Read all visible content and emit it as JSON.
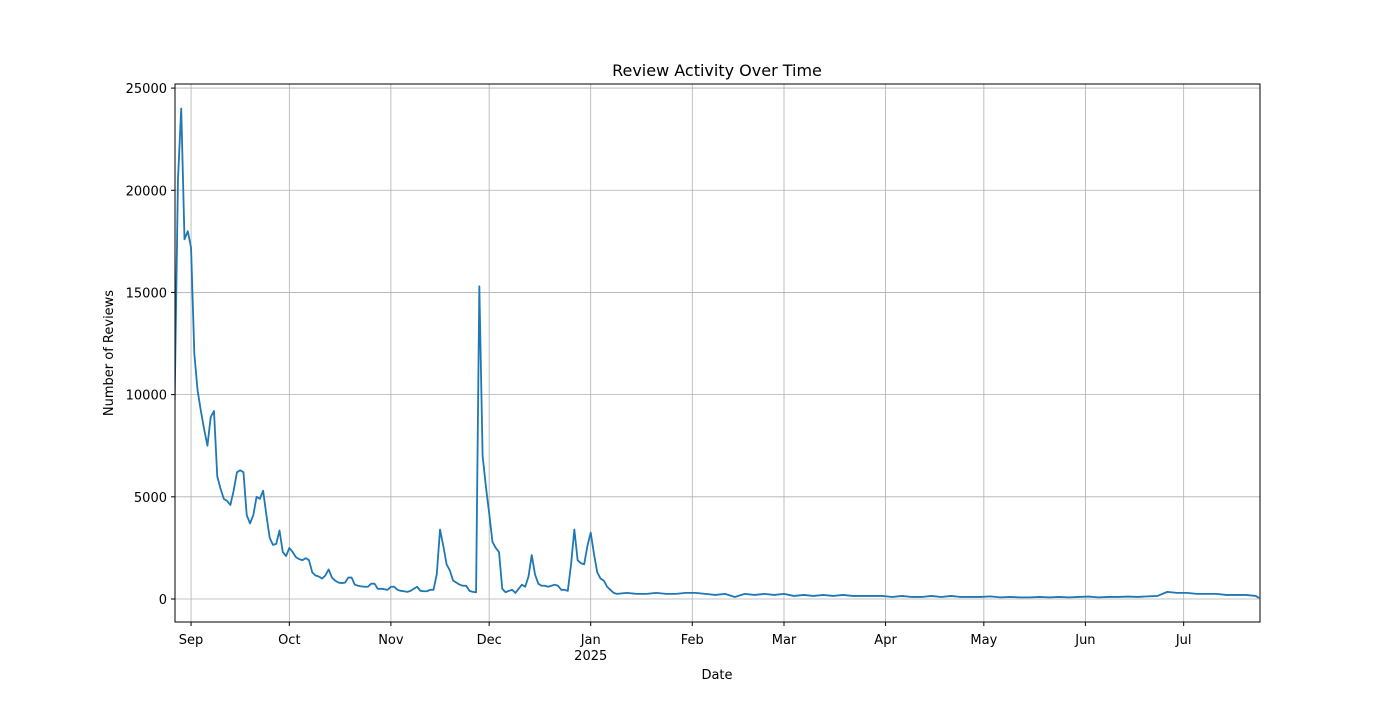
{
  "chart_data": {
    "type": "line",
    "title": "Review Activity Over Time",
    "xlabel": "Date",
    "ylabel": "Number of Reviews",
    "year_label": "2025",
    "color": "#1f77b4",
    "grid": true,
    "xlim": [
      -4.9,
      326.3
    ],
    "ylim": [
      -1125,
      25200
    ],
    "xticks": [
      {
        "value": 0,
        "label": "Sep"
      },
      {
        "value": 30,
        "label": "Oct"
      },
      {
        "value": 61,
        "label": "Nov"
      },
      {
        "value": 91,
        "label": "Dec"
      },
      {
        "value": 122,
        "label": "Jan"
      },
      {
        "value": 153,
        "label": "Feb"
      },
      {
        "value": 181,
        "label": "Mar"
      },
      {
        "value": 212,
        "label": "Apr"
      },
      {
        "value": 242,
        "label": "May"
      },
      {
        "value": 273,
        "label": "Jun"
      },
      {
        "value": 303,
        "label": "Jul"
      }
    ],
    "yticks": [
      0,
      5000,
      10000,
      15000,
      20000,
      25000
    ],
    "x": [
      -5,
      -4,
      -3,
      -2,
      -1,
      0,
      1,
      2,
      3,
      4,
      5,
      6,
      7,
      8,
      9,
      10,
      11,
      12,
      13,
      14,
      15,
      16,
      17,
      18,
      19,
      20,
      21,
      22,
      23,
      24,
      25,
      26,
      27,
      28,
      29,
      30,
      31,
      32,
      33,
      34,
      35,
      36,
      37,
      38,
      39,
      40,
      41,
      42,
      43,
      44,
      45,
      46,
      47,
      48,
      49,
      50,
      51,
      52,
      53,
      54,
      55,
      56,
      57,
      58,
      59,
      60,
      61,
      62,
      63,
      64,
      65,
      66,
      67,
      68,
      69,
      70,
      71,
      72,
      73,
      74,
      75,
      76,
      77,
      78,
      79,
      80,
      81,
      82,
      83,
      84,
      85,
      86,
      87,
      88,
      89,
      90,
      91,
      92,
      93,
      94,
      95,
      96,
      97,
      98,
      99,
      100,
      101,
      102,
      103,
      104,
      105,
      106,
      107,
      108,
      109,
      110,
      111,
      112,
      113,
      114,
      115,
      116,
      117,
      118,
      119,
      120,
      121,
      122,
      123,
      124,
      125,
      126,
      127,
      128,
      129,
      130,
      133,
      136,
      139,
      142,
      145,
      148,
      151,
      154,
      157,
      160,
      163,
      166,
      169,
      172,
      175,
      178,
      181,
      184,
      187,
      190,
      193,
      196,
      199,
      202,
      205,
      208,
      211,
      214,
      217,
      220,
      223,
      226,
      229,
      232,
      235,
      238,
      241,
      244,
      247,
      250,
      253,
      256,
      259,
      262,
      265,
      268,
      271,
      274,
      277,
      280,
      283,
      286,
      289,
      292,
      295,
      298,
      301,
      304,
      307,
      310,
      313,
      316,
      319,
      322,
      325,
      326
    ],
    "values": [
      9700,
      20500,
      24000,
      17600,
      18000,
      17200,
      12000,
      10200,
      9200,
      8300,
      7500,
      8900,
      9200,
      6000,
      5400,
      4900,
      4800,
      4600,
      5300,
      6200,
      6300,
      6200,
      4100,
      3700,
      4100,
      5000,
      4900,
      5300,
      4100,
      3000,
      2650,
      2700,
      3350,
      2300,
      2100,
      2500,
      2300,
      2050,
      1950,
      1900,
      2000,
      1900,
      1300,
      1150,
      1100,
      1000,
      1150,
      1450,
      1050,
      900,
      800,
      780,
      800,
      1050,
      1050,
      700,
      650,
      620,
      600,
      600,
      750,
      750,
      500,
      500,
      480,
      450,
      600,
      600,
      450,
      400,
      380,
      350,
      400,
      500,
      600,
      400,
      380,
      380,
      450,
      450,
      1200,
      3400,
      2600,
      1700,
      1400,
      900,
      800,
      700,
      650,
      650,
      400,
      350,
      330,
      15300,
      7000,
      5500,
      4200,
      2800,
      2500,
      2300,
      500,
      330,
      400,
      450,
      300,
      500,
      700,
      600,
      1100,
      2150,
      1200,
      750,
      650,
      650,
      600,
      650,
      700,
      650,
      450,
      450,
      400,
      1700,
      3400,
      1900,
      1750,
      1700,
      2600,
      3250,
      2200,
      1300,
      1000,
      900,
      600,
      450,
      300,
      250,
      300,
      250,
      250,
      300,
      250,
      250,
      300,
      300,
      250,
      200,
      250,
      100,
      250,
      200,
      250,
      200,
      250,
      150,
      200,
      150,
      200,
      150,
      200,
      150,
      150,
      150,
      150,
      100,
      150,
      100,
      100,
      150,
      100,
      150,
      100,
      100,
      100,
      130,
      80,
      100,
      80,
      80,
      100,
      80,
      100,
      80,
      100,
      120,
      80,
      100,
      100,
      120,
      100,
      130,
      150,
      350,
      300,
      300,
      250,
      250,
      250,
      200,
      200,
      200,
      150,
      50
    ]
  }
}
